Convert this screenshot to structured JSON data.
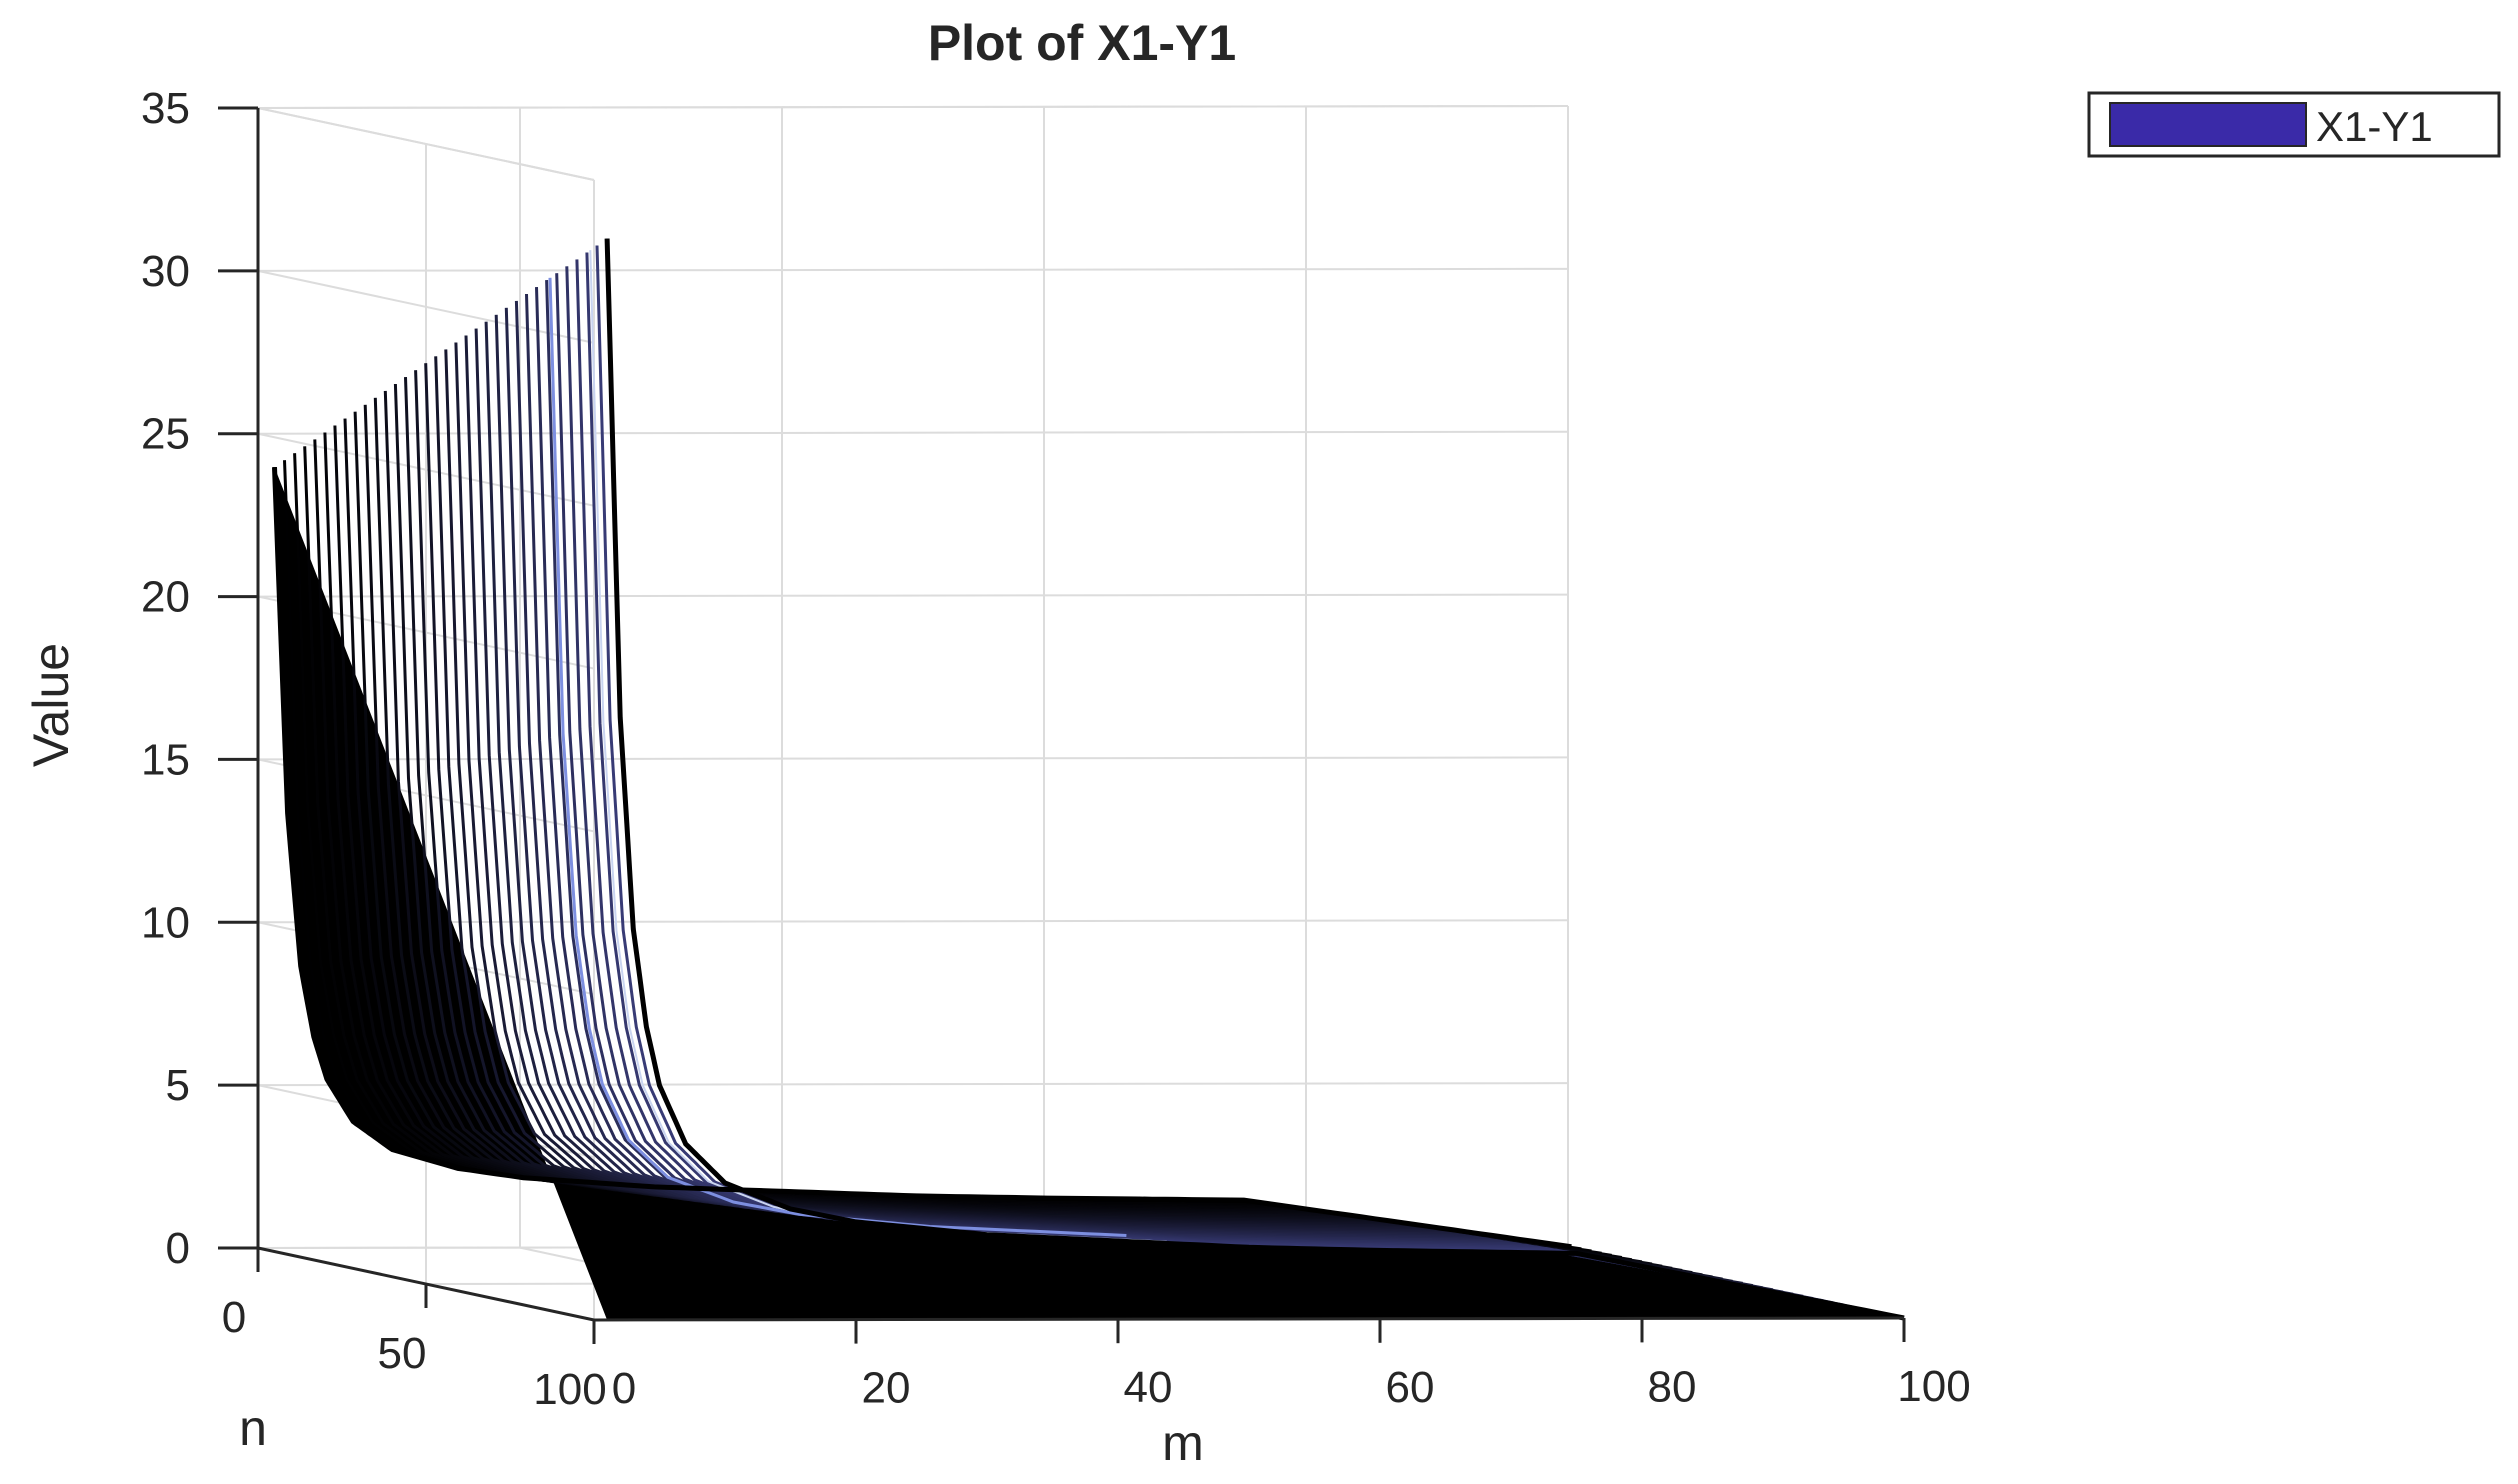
{
  "chart_data": {
    "type": "surface",
    "title": "Plot of X1-Y1",
    "xlabel": "m",
    "ylabel": "n",
    "zlabel": "Value",
    "xlim": [
      0,
      100
    ],
    "ylim": [
      0,
      100
    ],
    "zlim": [
      0,
      35
    ],
    "xticks": [
      0,
      20,
      40,
      60,
      80,
      100
    ],
    "yticks": [
      0,
      50,
      100
    ],
    "zticks": [
      0,
      5,
      10,
      15,
      20,
      25,
      30,
      35
    ],
    "grid": true,
    "legend": {
      "position": "top-right",
      "entries": [
        {
          "name": "X1-Y1",
          "color": "#3a2aa8"
        }
      ]
    },
    "front_edge_profile": {
      "m": [
        1,
        2,
        3,
        4,
        5,
        7,
        10,
        15,
        20,
        30,
        40,
        50,
        60,
        75,
        100
      ],
      "value": [
        33.2,
        18.5,
        12.0,
        9.0,
        7.2,
        5.4,
        4.2,
        3.4,
        3.0,
        2.6,
        2.4,
        2.2,
        2.1,
        2.0,
        0.0
      ]
    },
    "colors": {
      "surface_low": "#000000",
      "surface_high": "#3a2aa8",
      "legend_swatch": "#3a2aa8"
    }
  }
}
